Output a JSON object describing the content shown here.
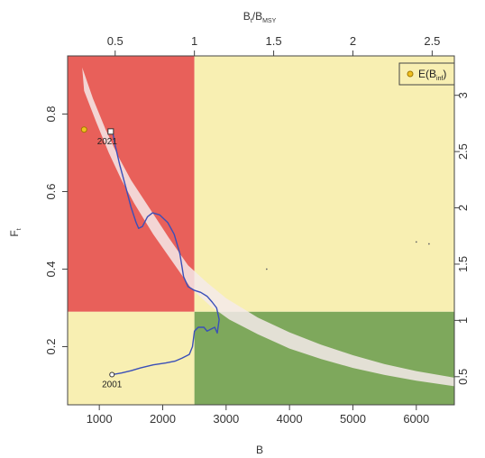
{
  "chart_data": {
    "type": "line",
    "title": "",
    "axes": {
      "bottom": {
        "label": "B",
        "xlim": [
          500,
          6600
        ],
        "ticks": [
          1000,
          2000,
          3000,
          4000,
          5000,
          6000
        ],
        "tick_labels": [
          "1000",
          "2000",
          "3000",
          "4000",
          "5000",
          "6000"
        ]
      },
      "top": {
        "label_main": "B",
        "label_sub1": "t",
        "label_slash": "/",
        "label_main2": "B",
        "label_sub2": "MSY",
        "lim": [
          0.2,
          2.64
        ],
        "ticks": [
          0.5,
          1,
          1.5,
          2,
          2.5
        ],
        "tick_labels": [
          "0.5",
          "1",
          "1.5",
          "2",
          "2.5"
        ]
      },
      "left": {
        "label_main": "F",
        "label_sub": "t",
        "ylim": [
          0.05,
          0.95
        ],
        "ticks": [
          0.2,
          0.4,
          0.6,
          0.8
        ],
        "tick_labels": [
          "0.2",
          "0.4",
          "0.6",
          "0.8"
        ]
      },
      "right": {
        "lim": [
          0.25,
          3.35
        ],
        "ticks": [
          0.5,
          1,
          1.5,
          2,
          2.5,
          3
        ],
        "tick_labels": [
          "0.5",
          "1",
          "1.5",
          "2",
          "2.5",
          "3"
        ]
      }
    },
    "reference": {
      "bmsy": 2500,
      "fmsy": 0.29
    },
    "regions": [
      {
        "name": "red",
        "color": "#e8605a",
        "x": [
          500,
          2500
        ],
        "y": [
          0.29,
          0.95
        ]
      },
      {
        "name": "yellow-top",
        "color": "#f8efb2",
        "x": [
          2500,
          6600
        ],
        "y": [
          0.29,
          0.95
        ]
      },
      {
        "name": "yellow-bottom",
        "color": "#f8efb2",
        "x": [
          500,
          2500
        ],
        "y": [
          0.05,
          0.29
        ]
      },
      {
        "name": "green",
        "color": "#7ea85c",
        "x": [
          2500,
          6600
        ],
        "y": [
          0.05,
          0.29
        ]
      }
    ],
    "band": {
      "color": "#f4eaea",
      "upper": [
        [
          730,
          0.92
        ],
        [
          900,
          0.84
        ],
        [
          1100,
          0.76
        ],
        [
          1300,
          0.69
        ],
        [
          1500,
          0.63
        ],
        [
          1800,
          0.555
        ],
        [
          2100,
          0.48
        ],
        [
          2400,
          0.41
        ],
        [
          2700,
          0.365
        ],
        [
          3000,
          0.325
        ],
        [
          3500,
          0.275
        ],
        [
          4000,
          0.237
        ],
        [
          4500,
          0.205
        ],
        [
          5000,
          0.178
        ],
        [
          5500,
          0.155
        ],
        [
          6000,
          0.137
        ],
        [
          6600,
          0.12
        ]
      ],
      "lower": [
        [
          760,
          0.86
        ],
        [
          950,
          0.78
        ],
        [
          1150,
          0.7
        ],
        [
          1350,
          0.63
        ],
        [
          1550,
          0.57
        ],
        [
          1850,
          0.49
        ],
        [
          2150,
          0.42
        ],
        [
          2450,
          0.35
        ],
        [
          2750,
          0.305
        ],
        [
          3050,
          0.27
        ],
        [
          3500,
          0.232
        ],
        [
          4000,
          0.195
        ],
        [
          4500,
          0.168
        ],
        [
          5000,
          0.145
        ],
        [
          5500,
          0.127
        ],
        [
          6000,
          0.112
        ],
        [
          6600,
          0.098
        ]
      ]
    },
    "trajectory": {
      "color": "#3a4fb8",
      "points": [
        [
          1210,
          0.755
        ],
        [
          1250,
          0.72
        ],
        [
          1320,
          0.67
        ],
        [
          1420,
          0.61
        ],
        [
          1500,
          0.56
        ],
        [
          1580,
          0.52
        ],
        [
          1620,
          0.505
        ],
        [
          1680,
          0.51
        ],
        [
          1760,
          0.535
        ],
        [
          1840,
          0.545
        ],
        [
          1950,
          0.54
        ],
        [
          2080,
          0.52
        ],
        [
          2180,
          0.49
        ],
        [
          2270,
          0.44
        ],
        [
          2330,
          0.38
        ],
        [
          2400,
          0.355
        ],
        [
          2500,
          0.345
        ],
        [
          2600,
          0.34
        ],
        [
          2700,
          0.33
        ],
        [
          2780,
          0.315
        ],
        [
          2850,
          0.3
        ],
        [
          2890,
          0.27
        ],
        [
          2860,
          0.235
        ],
        [
          2820,
          0.25
        ],
        [
          2760,
          0.245
        ],
        [
          2700,
          0.24
        ],
        [
          2650,
          0.25
        ],
        [
          2560,
          0.25
        ],
        [
          2500,
          0.24
        ],
        [
          2470,
          0.2
        ],
        [
          2420,
          0.18
        ],
        [
          2300,
          0.17
        ],
        [
          2200,
          0.163
        ],
        [
          2050,
          0.158
        ],
        [
          1850,
          0.153
        ],
        [
          1650,
          0.145
        ],
        [
          1500,
          0.138
        ],
        [
          1350,
          0.132
        ],
        [
          1200,
          0.128
        ]
      ]
    },
    "start_point": {
      "x": 1200,
      "y": 0.128,
      "label": "2001"
    },
    "end_point": {
      "x": 1180,
      "y": 0.755,
      "label": "2021"
    },
    "expected_point": {
      "x": 760,
      "y": 0.76,
      "color": "#f0c020"
    },
    "stray_points": [
      [
        3640,
        0.4
      ],
      [
        6000,
        0.47
      ],
      [
        6200,
        0.465
      ]
    ],
    "legend": {
      "label_main": "E(B",
      "label_sub": "inf",
      "label_close": ")",
      "placement": "top-right"
    }
  }
}
